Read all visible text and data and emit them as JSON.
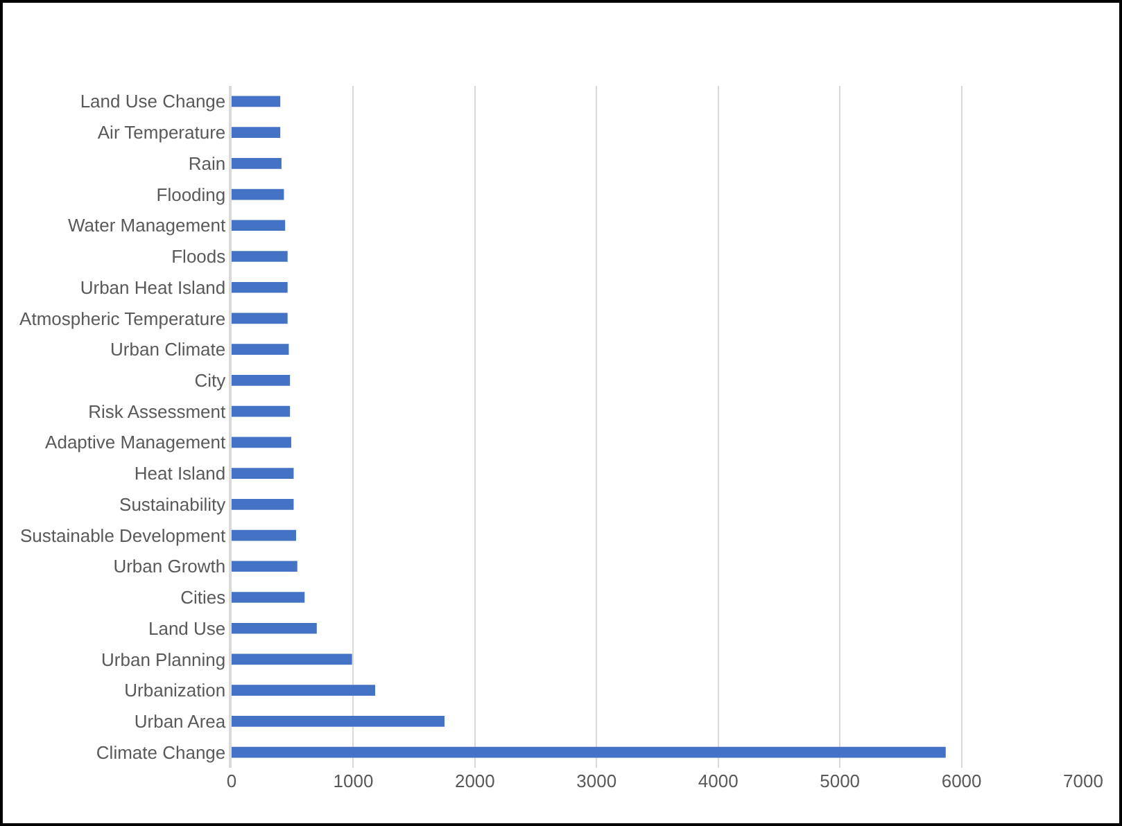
{
  "chart_data": {
    "type": "bar",
    "orientation": "horizontal",
    "categories": [
      "Land Use Change",
      "Air Temperature",
      "Rain",
      "Flooding",
      "Water Management",
      "Floods",
      "Urban Heat Island",
      "Atmospheric Temperature",
      "Urban Climate",
      "City",
      "Risk Assessment",
      "Adaptive Management",
      "Heat Island",
      "Sustainability",
      "Sustainable Development",
      "Urban Growth",
      "Cities",
      "Land Use",
      "Urban Planning",
      "Urbanization",
      "Urban Area",
      "Climate Change"
    ],
    "values": [
      400,
      400,
      410,
      430,
      440,
      460,
      460,
      460,
      470,
      480,
      480,
      490,
      510,
      510,
      530,
      540,
      600,
      700,
      990,
      1180,
      1750,
      5870
    ],
    "color": "#4472c4",
    "xlim": [
      0,
      7000
    ],
    "xticks": [
      0,
      1000,
      2000,
      3000,
      4000,
      5000,
      6000,
      7000
    ],
    "grid": "x"
  }
}
